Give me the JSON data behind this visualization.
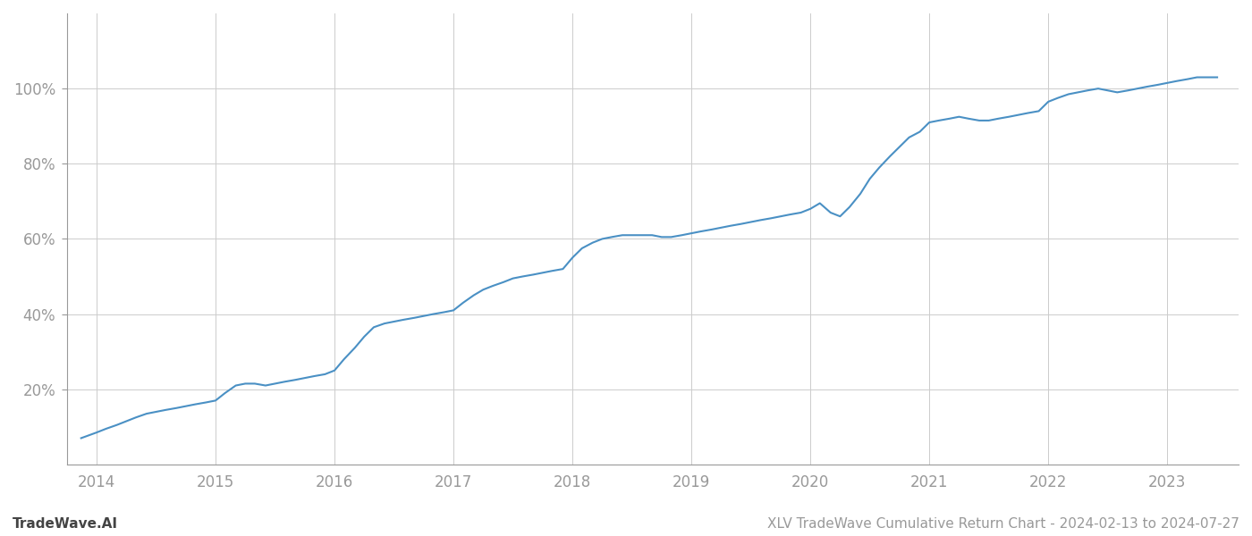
{
  "title": "XLV TradeWave Cumulative Return Chart - 2024-02-13 to 2024-07-27",
  "watermark": "TradeWave.AI",
  "line_color": "#4a90c4",
  "background_color": "#ffffff",
  "grid_color": "#cccccc",
  "x_years": [
    2014,
    2015,
    2016,
    2017,
    2018,
    2019,
    2020,
    2021,
    2022,
    2023
  ],
  "x_data": [
    2013.87,
    2014.0,
    2014.08,
    2014.17,
    2014.25,
    2014.33,
    2014.42,
    2014.5,
    2014.58,
    2014.67,
    2014.75,
    2014.83,
    2014.92,
    2015.0,
    2015.08,
    2015.17,
    2015.25,
    2015.33,
    2015.42,
    2015.5,
    2015.58,
    2015.67,
    2015.75,
    2015.83,
    2015.92,
    2016.0,
    2016.08,
    2016.17,
    2016.25,
    2016.33,
    2016.42,
    2016.5,
    2016.58,
    2016.67,
    2016.75,
    2016.83,
    2016.92,
    2017.0,
    2017.08,
    2017.17,
    2017.25,
    2017.33,
    2017.42,
    2017.5,
    2017.58,
    2017.67,
    2017.75,
    2017.83,
    2017.92,
    2018.0,
    2018.08,
    2018.17,
    2018.25,
    2018.33,
    2018.42,
    2018.5,
    2018.58,
    2018.67,
    2018.75,
    2018.83,
    2018.92,
    2019.0,
    2019.08,
    2019.17,
    2019.25,
    2019.33,
    2019.42,
    2019.5,
    2019.58,
    2019.67,
    2019.75,
    2019.83,
    2019.92,
    2020.0,
    2020.08,
    2020.17,
    2020.25,
    2020.33,
    2020.42,
    2020.5,
    2020.58,
    2020.67,
    2020.75,
    2020.83,
    2020.92,
    2021.0,
    2021.08,
    2021.17,
    2021.25,
    2021.33,
    2021.42,
    2021.5,
    2021.58,
    2021.67,
    2021.75,
    2021.83,
    2021.92,
    2022.0,
    2022.08,
    2022.17,
    2022.25,
    2022.33,
    2022.42,
    2022.5,
    2022.58,
    2022.67,
    2022.75,
    2022.83,
    2022.92,
    2023.0,
    2023.08,
    2023.17,
    2023.25,
    2023.33,
    2023.42
  ],
  "y_data": [
    7.0,
    8.5,
    9.5,
    10.5,
    11.5,
    12.5,
    13.5,
    14.0,
    14.5,
    15.0,
    15.5,
    16.0,
    16.5,
    17.0,
    19.0,
    21.0,
    21.5,
    21.5,
    21.0,
    21.5,
    22.0,
    22.5,
    23.0,
    23.5,
    24.0,
    25.0,
    28.0,
    31.0,
    34.0,
    36.5,
    37.5,
    38.0,
    38.5,
    39.0,
    39.5,
    40.0,
    40.5,
    41.0,
    43.0,
    45.0,
    46.5,
    47.5,
    48.5,
    49.5,
    50.0,
    50.5,
    51.0,
    51.5,
    52.0,
    55.0,
    57.5,
    59.0,
    60.0,
    60.5,
    61.0,
    61.0,
    61.0,
    61.0,
    60.5,
    60.5,
    61.0,
    61.5,
    62.0,
    62.5,
    63.0,
    63.5,
    64.0,
    64.5,
    65.0,
    65.5,
    66.0,
    66.5,
    67.0,
    68.0,
    69.5,
    67.0,
    66.0,
    68.5,
    72.0,
    76.0,
    79.0,
    82.0,
    84.5,
    87.0,
    88.5,
    91.0,
    91.5,
    92.0,
    92.5,
    92.0,
    91.5,
    91.5,
    92.0,
    92.5,
    93.0,
    93.5,
    94.0,
    96.5,
    97.5,
    98.5,
    99.0,
    99.5,
    100.0,
    99.5,
    99.0,
    99.5,
    100.0,
    100.5,
    101.0,
    101.5,
    102.0,
    102.5,
    103.0,
    103.0,
    103.0
  ],
  "ylim": [
    0,
    120
  ],
  "xlim": [
    2013.75,
    2023.6
  ],
  "yticks": [
    20,
    40,
    60,
    80,
    100
  ],
  "ytick_labels": [
    "20%",
    "40%",
    "60%",
    "80%",
    "100%"
  ],
  "line_width": 1.5,
  "title_fontsize": 11,
  "tick_fontsize": 12,
  "watermark_fontsize": 11,
  "tick_color": "#999999",
  "spine_color": "#999999"
}
